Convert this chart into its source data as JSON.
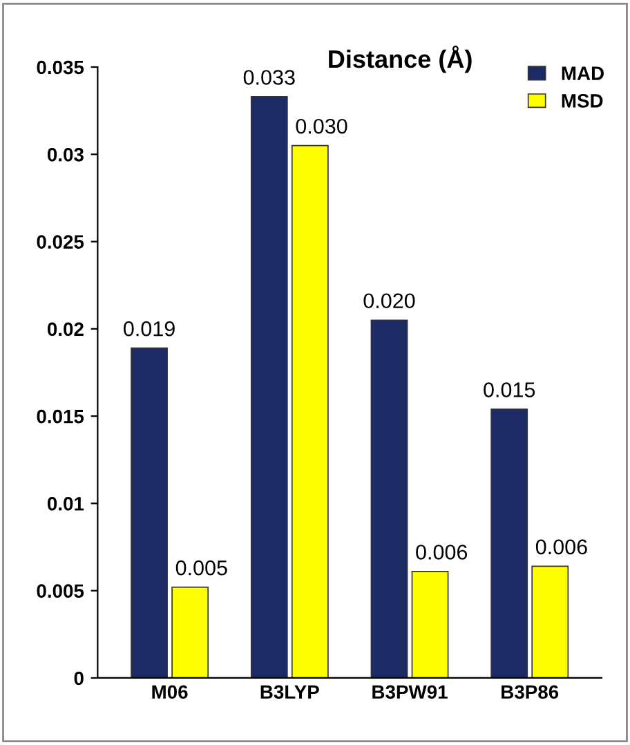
{
  "chart_data": {
    "type": "bar",
    "title": "Distance (Å)",
    "categories": [
      "M06",
      "B3LYP",
      "B3PW91",
      "B3P86"
    ],
    "series": [
      {
        "name": "MAD",
        "color": "#1c2a66",
        "values": [
          0.0189,
          0.0333,
          0.0205,
          0.0154
        ],
        "value_labels": [
          "0.019",
          "0.033",
          "0.020",
          "0.015"
        ]
      },
      {
        "name": "MSD",
        "color": "#ffff00",
        "values": [
          0.0052,
          0.0305,
          0.0061,
          0.0064
        ],
        "value_labels": [
          "0.005",
          "0.030",
          "0.006",
          "0.006"
        ]
      }
    ],
    "ylim": [
      0,
      0.035
    ],
    "yticks": [
      0,
      0.005,
      0.01,
      0.015,
      0.02,
      0.025,
      0.03,
      0.035
    ],
    "grid": false,
    "legend": "top right"
  }
}
